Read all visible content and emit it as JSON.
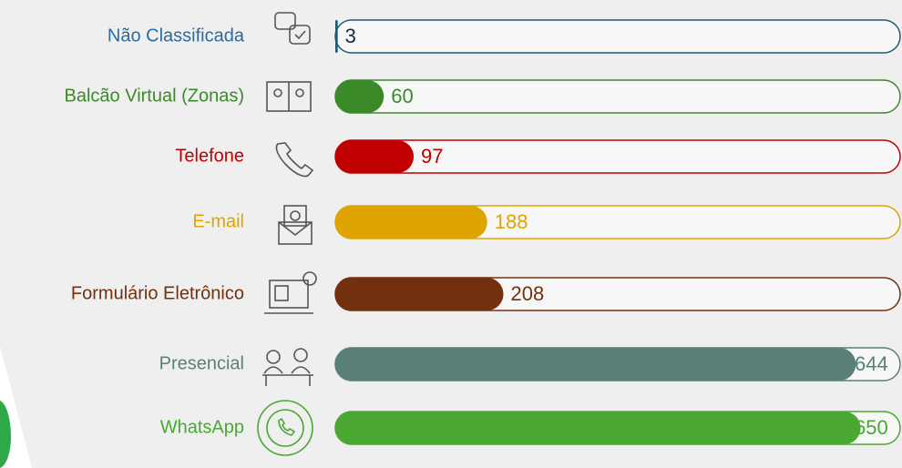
{
  "chart_data": {
    "type": "bar",
    "categories": [
      "Não Classificada",
      "Balcão Virtual  (Zonas)",
      "Telefone",
      "E-mail",
      "Formulário Eletrônico",
      "Presencial",
      "WhatsApp"
    ],
    "values": [
      3,
      60,
      97,
      188,
      208,
      644,
      650
    ],
    "colors": [
      "#1f5a78",
      "#3a8a2a",
      "#c00000",
      "#e0a400",
      "#73300e",
      "#5a7f77",
      "#4aa832"
    ],
    "label_colors": [
      "#2e6aa0",
      "#3a8a2a",
      "#c00000",
      "#e0a400",
      "#73300e",
      "#5a7f77",
      "#4aa832"
    ]
  }
}
